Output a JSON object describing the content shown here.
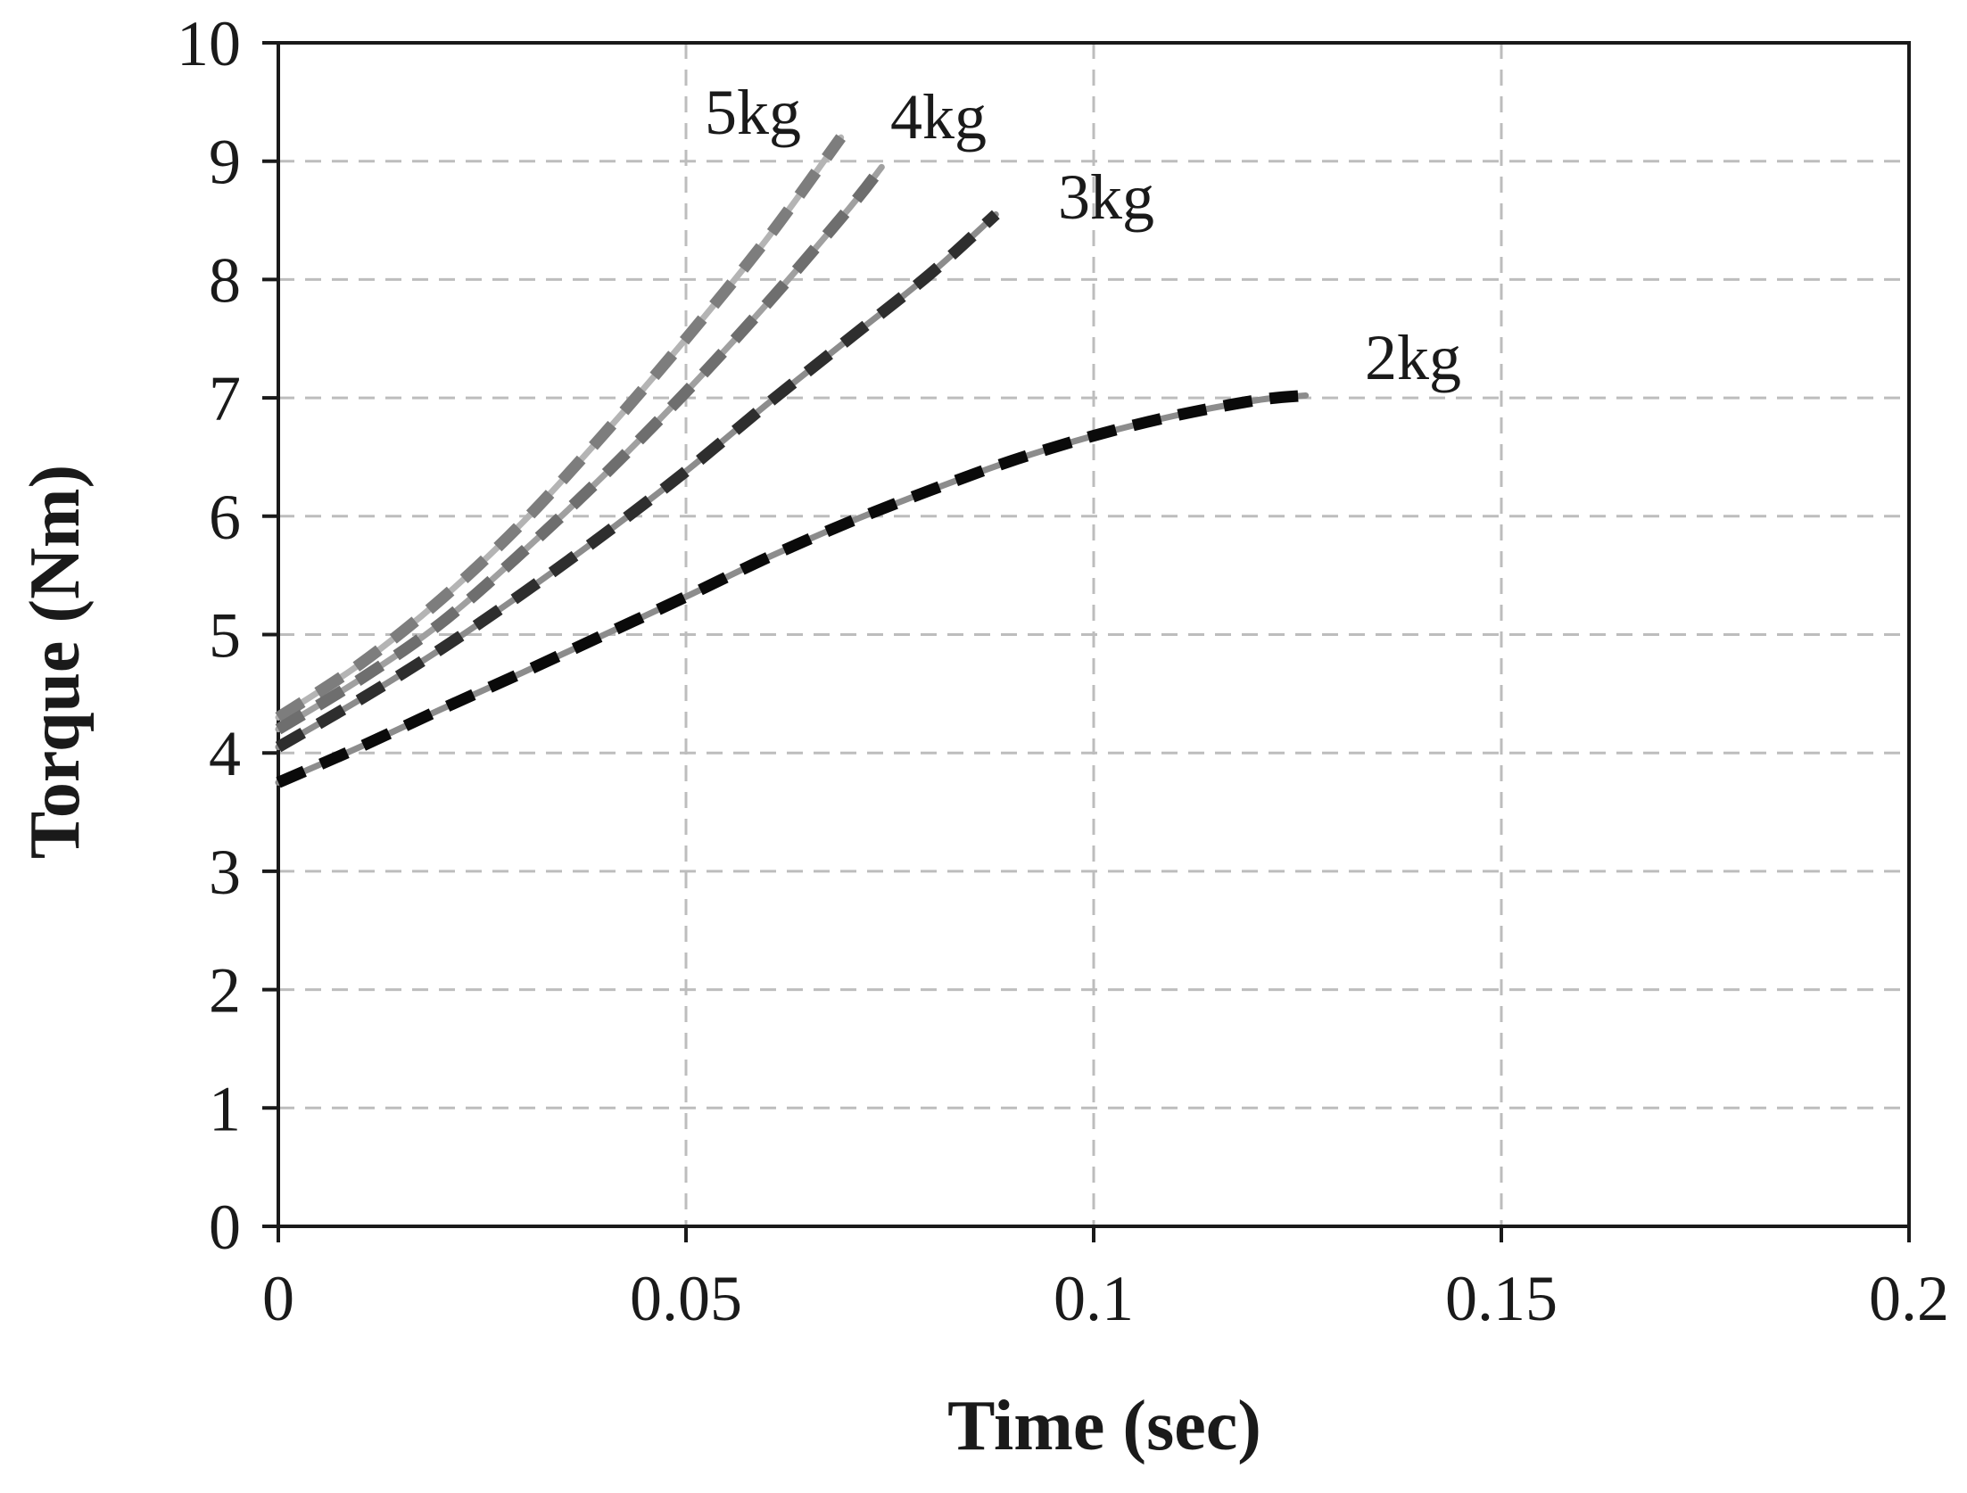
{
  "chart_data": {
    "type": "line",
    "title": "",
    "xlabel": "Time (sec)",
    "ylabel": "Torque (Nm)",
    "xlim": [
      0,
      0.2
    ],
    "ylim": [
      0,
      10
    ],
    "xticks": [
      0,
      0.05,
      0.1,
      0.15,
      0.2
    ],
    "xtick_labels": [
      "0",
      "0.05",
      "0.1",
      "0.15",
      "0.2"
    ],
    "yticks": [
      0,
      1,
      2,
      3,
      4,
      5,
      6,
      7,
      8,
      9,
      10
    ],
    "ytick_labels": [
      "0",
      "1",
      "2",
      "3",
      "4",
      "5",
      "6",
      "7",
      "8",
      "9",
      "10"
    ],
    "grid": true,
    "series": [
      {
        "name": "5kg",
        "label": "5kg",
        "solid_color": "#b4b4b4",
        "dash_color": "#7d7d7d",
        "x": [
          0,
          0.01,
          0.02,
          0.03,
          0.04,
          0.05,
          0.06,
          0.069
        ],
        "y": [
          4.3,
          4.75,
          5.3,
          5.95,
          6.7,
          7.5,
          8.35,
          9.2
        ]
      },
      {
        "name": "4kg",
        "label": "4kg",
        "solid_color": "#a0a0a0",
        "dash_color": "#6e6e6e",
        "x": [
          0,
          0.01,
          0.02,
          0.03,
          0.04,
          0.05,
          0.06,
          0.07,
          0.074
        ],
        "y": [
          4.2,
          4.62,
          5.1,
          5.7,
          6.35,
          7.05,
          7.8,
          8.6,
          8.95
        ]
      },
      {
        "name": "3kg",
        "label": "3kg",
        "solid_color": "#8c8c8c",
        "dash_color": "#2e2e2e",
        "x": [
          0,
          0.01,
          0.02,
          0.03,
          0.04,
          0.05,
          0.06,
          0.07,
          0.08,
          0.088
        ],
        "y": [
          4.05,
          4.45,
          4.88,
          5.35,
          5.85,
          6.38,
          6.95,
          7.5,
          8.05,
          8.55
        ]
      },
      {
        "name": "2kg",
        "label": "2kg",
        "solid_color": "#8c8c8c",
        "dash_color": "#0a0a0a",
        "x": [
          0,
          0.01,
          0.02,
          0.03,
          0.04,
          0.05,
          0.06,
          0.07,
          0.08,
          0.09,
          0.1,
          0.11,
          0.12,
          0.126
        ],
        "y": [
          3.75,
          4.05,
          4.37,
          4.68,
          5.0,
          5.32,
          5.65,
          5.95,
          6.22,
          6.47,
          6.68,
          6.85,
          6.98,
          7.02
        ]
      }
    ]
  }
}
